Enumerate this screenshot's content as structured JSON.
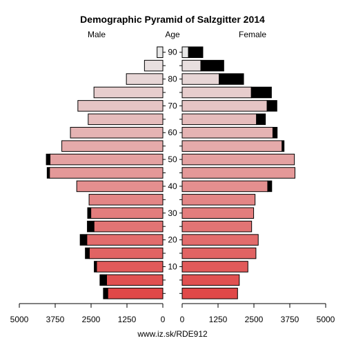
{
  "chart_data": {
    "type": "population-pyramid",
    "title": "Demographic Pyramid of Salzgitter 2014",
    "left_label": "Male",
    "center_label": "Age",
    "right_label": "Female",
    "footer": "www.iz.sk/RDE912",
    "xlim": [
      0,
      5000
    ],
    "x_ticks": [
      0,
      1250,
      2500,
      3750,
      5000
    ],
    "x_tick_labels": [
      "0",
      "1250",
      "2500",
      "3750",
      "5000"
    ],
    "age_ticks": [
      10,
      20,
      30,
      40,
      50,
      60,
      70,
      80,
      90
    ],
    "age_tick_labels": [
      "10",
      "20",
      "30",
      "40",
      "50",
      "60",
      "70",
      "80",
      "90"
    ],
    "groups": [
      {
        "age_start": 0,
        "male_base": 1920,
        "male_excess": 150,
        "female_base": 1930,
        "female_excess": 0
      },
      {
        "age_start": 5,
        "male_base": 1960,
        "male_excess": 230,
        "female_base": 1990,
        "female_excess": 0
      },
      {
        "age_start": 10,
        "male_base": 2310,
        "male_excess": 80,
        "female_base": 2290,
        "female_excess": 0
      },
      {
        "age_start": 15,
        "male_base": 2560,
        "male_excess": 140,
        "female_base": 2570,
        "female_excess": 0
      },
      {
        "age_start": 20,
        "male_base": 2650,
        "male_excess": 230,
        "female_base": 2650,
        "female_excess": 0
      },
      {
        "age_start": 25,
        "male_base": 2400,
        "male_excess": 230,
        "female_base": 2420,
        "female_excess": 0
      },
      {
        "age_start": 30,
        "male_base": 2510,
        "male_excess": 110,
        "female_base": 2490,
        "female_excess": 0
      },
      {
        "age_start": 35,
        "male_base": 2570,
        "male_excess": 0,
        "female_base": 2540,
        "female_excess": 0
      },
      {
        "age_start": 40,
        "male_base": 3000,
        "male_excess": 0,
        "female_base": 2980,
        "female_excess": 140
      },
      {
        "age_start": 45,
        "male_base": 3950,
        "male_excess": 80,
        "female_base": 3930,
        "female_excess": 0
      },
      {
        "age_start": 50,
        "male_base": 3930,
        "male_excess": 130,
        "female_base": 3910,
        "female_excess": 0
      },
      {
        "age_start": 55,
        "male_base": 3520,
        "male_excess": 0,
        "female_base": 3480,
        "female_excess": 70
      },
      {
        "age_start": 60,
        "male_base": 3220,
        "male_excess": 0,
        "female_base": 3160,
        "female_excess": 150
      },
      {
        "age_start": 65,
        "male_base": 2600,
        "male_excess": 0,
        "female_base": 2590,
        "female_excess": 310
      },
      {
        "age_start": 70,
        "male_base": 2960,
        "male_excess": 0,
        "female_base": 2960,
        "female_excess": 340
      },
      {
        "age_start": 75,
        "male_base": 2400,
        "male_excess": 0,
        "female_base": 2410,
        "female_excess": 700
      },
      {
        "age_start": 80,
        "male_base": 1270,
        "male_excess": 0,
        "female_base": 1290,
        "female_excess": 850
      },
      {
        "age_start": 85,
        "male_base": 640,
        "male_excess": 0,
        "female_base": 650,
        "female_excess": 800
      },
      {
        "age_start": 90,
        "male_base": 200,
        "male_excess": 0,
        "female_base": 220,
        "female_excess": 500
      }
    ],
    "colors": {
      "excess": "#000000",
      "outline": "#000000",
      "gradient_young": "#e04848",
      "gradient_old": "#e8e8e8"
    }
  }
}
